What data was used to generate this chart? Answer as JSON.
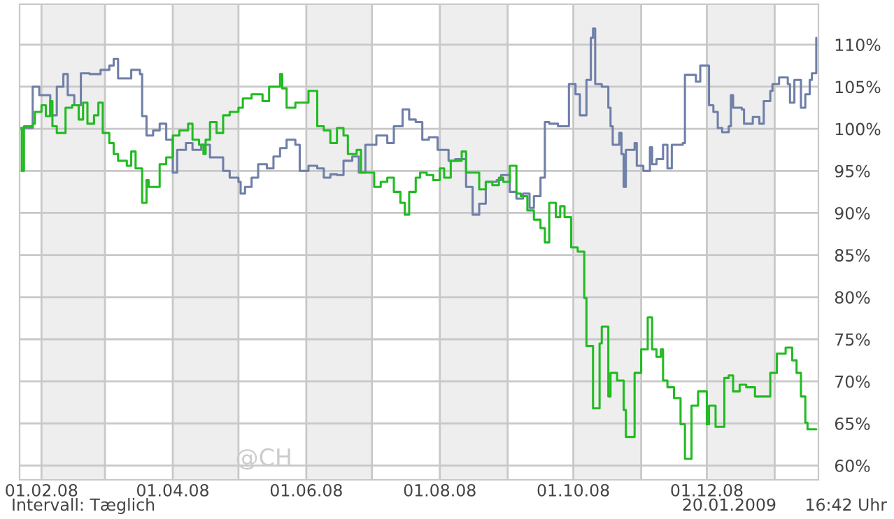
{
  "chart_data": {
    "type": "step",
    "xlim": [
      "2008-01-22",
      "2009-01-21"
    ],
    "ylim": [
      58.3,
      114.8
    ],
    "xticks": [
      {
        "value": "2008-02-01",
        "label": "01.02.08"
      },
      {
        "value": "2008-03-01",
        "label": null
      },
      {
        "value": "2008-04-01",
        "label": "01.04.08"
      },
      {
        "value": "2008-05-01",
        "label": null
      },
      {
        "value": "2008-06-01",
        "label": "01.06.08"
      },
      {
        "value": "2008-07-01",
        "label": null
      },
      {
        "value": "2008-08-01",
        "label": "01.08.08"
      },
      {
        "value": "2008-09-01",
        "label": null
      },
      {
        "value": "2008-10-01",
        "label": "01.10.08"
      },
      {
        "value": "2008-11-01",
        "label": null
      },
      {
        "value": "2008-12-01",
        "label": "01.12.08"
      },
      {
        "value": "2009-01-01",
        "label": null
      }
    ],
    "yticks": [
      {
        "value": 60,
        "label": "60%"
      },
      {
        "value": 65,
        "label": "65%"
      },
      {
        "value": 70,
        "label": "70%"
      },
      {
        "value": 75,
        "label": "75%"
      },
      {
        "value": 80,
        "label": "80%"
      },
      {
        "value": 85,
        "label": "85%"
      },
      {
        "value": 90,
        "label": "90%"
      },
      {
        "value": 95,
        "label": "95%"
      },
      {
        "value": 100,
        "label": "100%"
      },
      {
        "value": 105,
        "label": "105%"
      },
      {
        "value": 110,
        "label": "110%"
      }
    ],
    "grid": true,
    "legend": false,
    "bands": [
      {
        "axis": "x",
        "from": "2008-02-01",
        "to": "2008-03-01",
        "color": "#eeeeee"
      },
      {
        "axis": "x",
        "from": "2008-04-01",
        "to": "2008-05-01",
        "color": "#eeeeee"
      },
      {
        "axis": "x",
        "from": "2008-06-01",
        "to": "2008-07-01",
        "color": "#eeeeee"
      },
      {
        "axis": "x",
        "from": "2008-08-01",
        "to": "2008-09-01",
        "color": "#eeeeee"
      },
      {
        "axis": "x",
        "from": "2008-10-01",
        "to": "2008-11-01",
        "color": "#eeeeee"
      },
      {
        "axis": "x",
        "from": "2008-12-01",
        "to": "2009-01-01",
        "color": "#eeeeee"
      }
    ],
    "annotations": [
      "@CH",
      "Intervall: Tæglich",
      "20.01.2009",
      "16:42 Uhr"
    ],
    "series": [
      {
        "color": "#6f7fa8",
        "x": [
          "2008-01-22",
          "2008-01-28",
          "2008-01-31",
          "2008-02-05",
          "2008-02-08",
          "2008-02-11",
          "2008-02-13",
          "2008-02-16",
          "2008-02-19",
          "2008-02-23",
          "2008-02-28",
          "2008-03-03",
          "2008-03-05",
          "2008-03-07",
          "2008-03-13",
          "2008-03-17",
          "2008-03-18",
          "2008-03-20",
          "2008-03-23",
          "2008-03-26",
          "2008-03-29",
          "2008-04-01",
          "2008-04-03",
          "2008-04-07",
          "2008-04-10",
          "2008-04-14",
          "2008-04-18",
          "2008-04-24",
          "2008-04-27",
          "2008-05-01",
          "2008-05-02",
          "2008-05-04",
          "2008-05-07",
          "2008-05-10",
          "2008-05-14",
          "2008-05-17",
          "2008-05-20",
          "2008-05-23",
          "2008-05-27",
          "2008-05-29",
          "2008-06-02",
          "2008-06-06",
          "2008-06-09",
          "2008-06-12",
          "2008-06-15",
          "2008-06-18",
          "2008-06-22",
          "2008-06-25",
          "2008-06-28",
          "2008-07-03",
          "2008-07-08",
          "2008-07-11",
          "2008-07-15",
          "2008-07-18",
          "2008-07-21",
          "2008-07-24",
          "2008-07-27",
          "2008-07-31",
          "2008-08-05",
          "2008-08-08",
          "2008-08-13",
          "2008-08-16",
          "2008-08-19",
          "2008-08-22",
          "2008-08-27",
          "2008-08-29",
          "2008-09-02",
          "2008-09-05",
          "2008-09-08",
          "2008-09-11",
          "2008-09-13",
          "2008-09-16",
          "2008-09-18",
          "2008-09-20",
          "2008-09-24",
          "2008-09-29",
          "2008-10-02",
          "2008-10-04",
          "2008-10-07",
          "2008-10-09",
          "2008-10-10",
          "2008-10-11",
          "2008-10-14",
          "2008-10-17",
          "2008-10-18",
          "2008-10-19",
          "2008-10-22",
          "2008-10-23",
          "2008-10-24",
          "2008-10-25",
          "2008-10-29",
          "2008-10-30",
          "2008-11-02",
          "2008-11-05",
          "2008-11-06",
          "2008-11-08",
          "2008-11-11",
          "2008-11-13",
          "2008-11-15",
          "2008-11-20",
          "2008-11-21",
          "2008-11-26",
          "2008-11-28",
          "2008-12-02",
          "2008-12-04",
          "2008-12-06",
          "2008-12-08",
          "2008-12-11",
          "2008-12-12",
          "2008-12-13",
          "2008-12-17",
          "2008-12-18",
          "2008-12-22",
          "2008-12-25",
          "2008-12-27",
          "2008-12-30",
          "2008-12-31",
          "2009-01-03",
          "2009-01-07",
          "2009-01-08",
          "2009-01-10",
          "2009-01-13",
          "2009-01-15",
          "2009-01-17",
          "2009-01-18",
          "2009-01-20"
        ],
        "values": [
          100.1,
          105,
          104,
          101.6,
          105,
          106.5,
          104,
          102.8,
          106.6,
          106.5,
          107,
          107.5,
          108.3,
          106,
          107,
          106.5,
          101.5,
          99.2,
          99.8,
          100.6,
          98.7,
          94.8,
          97.5,
          98.3,
          97.5,
          98.1,
          96.6,
          95,
          94.2,
          93.7,
          92.3,
          93.1,
          94.2,
          95.8,
          95.3,
          96.7,
          97.7,
          98.7,
          98.1,
          95,
          95.6,
          95.3,
          94.2,
          94.6,
          94.5,
          96.2,
          96.7,
          94.8,
          98.1,
          99.2,
          98.3,
          100.3,
          102.3,
          101.1,
          100.8,
          98.7,
          99,
          97.5,
          96.2,
          96.4,
          93.1,
          89.8,
          91.1,
          93.7,
          93.9,
          94.5,
          92.5,
          91.7,
          92.3,
          90.6,
          92,
          94.2,
          100.8,
          100.6,
          100.3,
          105.3,
          104.1,
          101.6,
          105.8,
          110.8,
          111.9,
          105.3,
          105,
          102.5,
          100.3,
          98.1,
          99.5,
          97,
          93.1,
          97.5,
          98.3,
          95.6,
          95,
          97.8,
          95.8,
          96.4,
          98.1,
          95.3,
          98.1,
          98.3,
          106.4,
          105.6,
          107.5,
          102.8,
          102,
          100.1,
          99.6,
          100.3,
          104,
          102.5,
          102.3,
          100.6,
          101.4,
          100.6,
          103.3,
          104.5,
          105.3,
          106.1,
          105.3,
          103.1,
          105.8,
          102.5,
          104.1,
          105.8,
          106.6,
          110.8
        ]
      },
      {
        "color": "#22bb22",
        "x": [
          "2008-01-22",
          "2008-01-23",
          "2008-01-24",
          "2008-01-28",
          "2008-01-29",
          "2008-02-01",
          "2008-02-03",
          "2008-02-05",
          "2008-02-06",
          "2008-02-08",
          "2008-02-12",
          "2008-02-15",
          "2008-02-18",
          "2008-02-20",
          "2008-02-22",
          "2008-02-25",
          "2008-02-27",
          "2008-02-29",
          "2008-03-03",
          "2008-03-05",
          "2008-03-07",
          "2008-03-11",
          "2008-03-13",
          "2008-03-15",
          "2008-03-18",
          "2008-03-20",
          "2008-03-21",
          "2008-03-26",
          "2008-03-29",
          "2008-04-01",
          "2008-04-04",
          "2008-04-08",
          "2008-04-10",
          "2008-04-13",
          "2008-04-15",
          "2008-04-16",
          "2008-04-18",
          "2008-04-21",
          "2008-04-24",
          "2008-04-27",
          "2008-05-01",
          "2008-05-03",
          "2008-05-07",
          "2008-05-12",
          "2008-05-15",
          "2008-05-20",
          "2008-05-21",
          "2008-05-23",
          "2008-05-27",
          "2008-06-02",
          "2008-06-06",
          "2008-06-09",
          "2008-06-12",
          "2008-06-15",
          "2008-06-18",
          "2008-06-20",
          "2008-06-24",
          "2008-06-26",
          "2008-07-02",
          "2008-07-05",
          "2008-07-08",
          "2008-07-11",
          "2008-07-14",
          "2008-07-16",
          "2008-07-18",
          "2008-07-21",
          "2008-07-23",
          "2008-07-26",
          "2008-07-29",
          "2008-08-01",
          "2008-08-03",
          "2008-08-06",
          "2008-08-11",
          "2008-08-13",
          "2008-08-19",
          "2008-08-22",
          "2008-08-25",
          "2008-08-28",
          "2008-08-30",
          "2008-09-02",
          "2008-09-05",
          "2008-09-07",
          "2008-09-10",
          "2008-09-13",
          "2008-09-16",
          "2008-09-18",
          "2008-09-20",
          "2008-09-23",
          "2008-09-25",
          "2008-09-27",
          "2008-09-30",
          "2008-10-03",
          "2008-10-06",
          "2008-10-07",
          "2008-10-10",
          "2008-10-13",
          "2008-10-14",
          "2008-10-17",
          "2008-10-18",
          "2008-10-21",
          "2008-10-24",
          "2008-10-25",
          "2008-10-29",
          "2008-11-01",
          "2008-11-04",
          "2008-11-06",
          "2008-11-08",
          "2008-11-10",
          "2008-11-11",
          "2008-11-13",
          "2008-11-16",
          "2008-11-19",
          "2008-11-21",
          "2008-11-24",
          "2008-11-27",
          "2008-12-01",
          "2008-12-02",
          "2008-12-05",
          "2008-12-09",
          "2008-12-11",
          "2008-12-13",
          "2008-12-16",
          "2008-12-19",
          "2008-12-23",
          "2008-12-30",
          "2009-01-02",
          "2009-01-06",
          "2009-01-09",
          "2009-01-11",
          "2009-01-13",
          "2009-01-15",
          "2009-01-16",
          "2009-01-20"
        ],
        "values": [
          100,
          95,
          100.3,
          100.6,
          102,
          102.8,
          101.5,
          103.3,
          100.3,
          99.5,
          102.5,
          102.8,
          101.1,
          103.1,
          100.6,
          101.6,
          103.1,
          99.5,
          98.3,
          97,
          96.2,
          95.6,
          97.3,
          95.3,
          91.2,
          93.9,
          93.1,
          95.8,
          96.6,
          99.2,
          99.8,
          100.6,
          98.7,
          98.1,
          97,
          98.7,
          100.8,
          99.5,
          101.6,
          102,
          102.5,
          103.6,
          104.1,
          103.3,
          105,
          106.5,
          104.8,
          102.5,
          103.1,
          104.5,
          100.3,
          99.8,
          98.3,
          100.1,
          99.2,
          97,
          97.5,
          94.8,
          93.1,
          93.7,
          94.2,
          92.5,
          91.2,
          89.8,
          92.5,
          94.2,
          94.8,
          94.5,
          93.9,
          95.3,
          94.2,
          96.2,
          97.3,
          94.8,
          92.8,
          93.7,
          93.3,
          94.2,
          93.7,
          95.6,
          92.3,
          92,
          90.3,
          89.2,
          88.2,
          86.5,
          91.2,
          89.5,
          90.8,
          89.5,
          85.9,
          85.4,
          79.9,
          74.2,
          66.8,
          74.5,
          76.5,
          68.2,
          71,
          70.1,
          66.6,
          63.4,
          71,
          73.8,
          77.6,
          73.8,
          72.9,
          73.8,
          70.1,
          69.3,
          68,
          64.9,
          60.8,
          67.1,
          68.8,
          64.9,
          67.1,
          64.6,
          70.4,
          70.7,
          68.8,
          69.6,
          69.3,
          68.2,
          71,
          73.3,
          74,
          72.5,
          71,
          68.2,
          65.1,
          64.3,
          64.3
        ]
      }
    ]
  }
}
